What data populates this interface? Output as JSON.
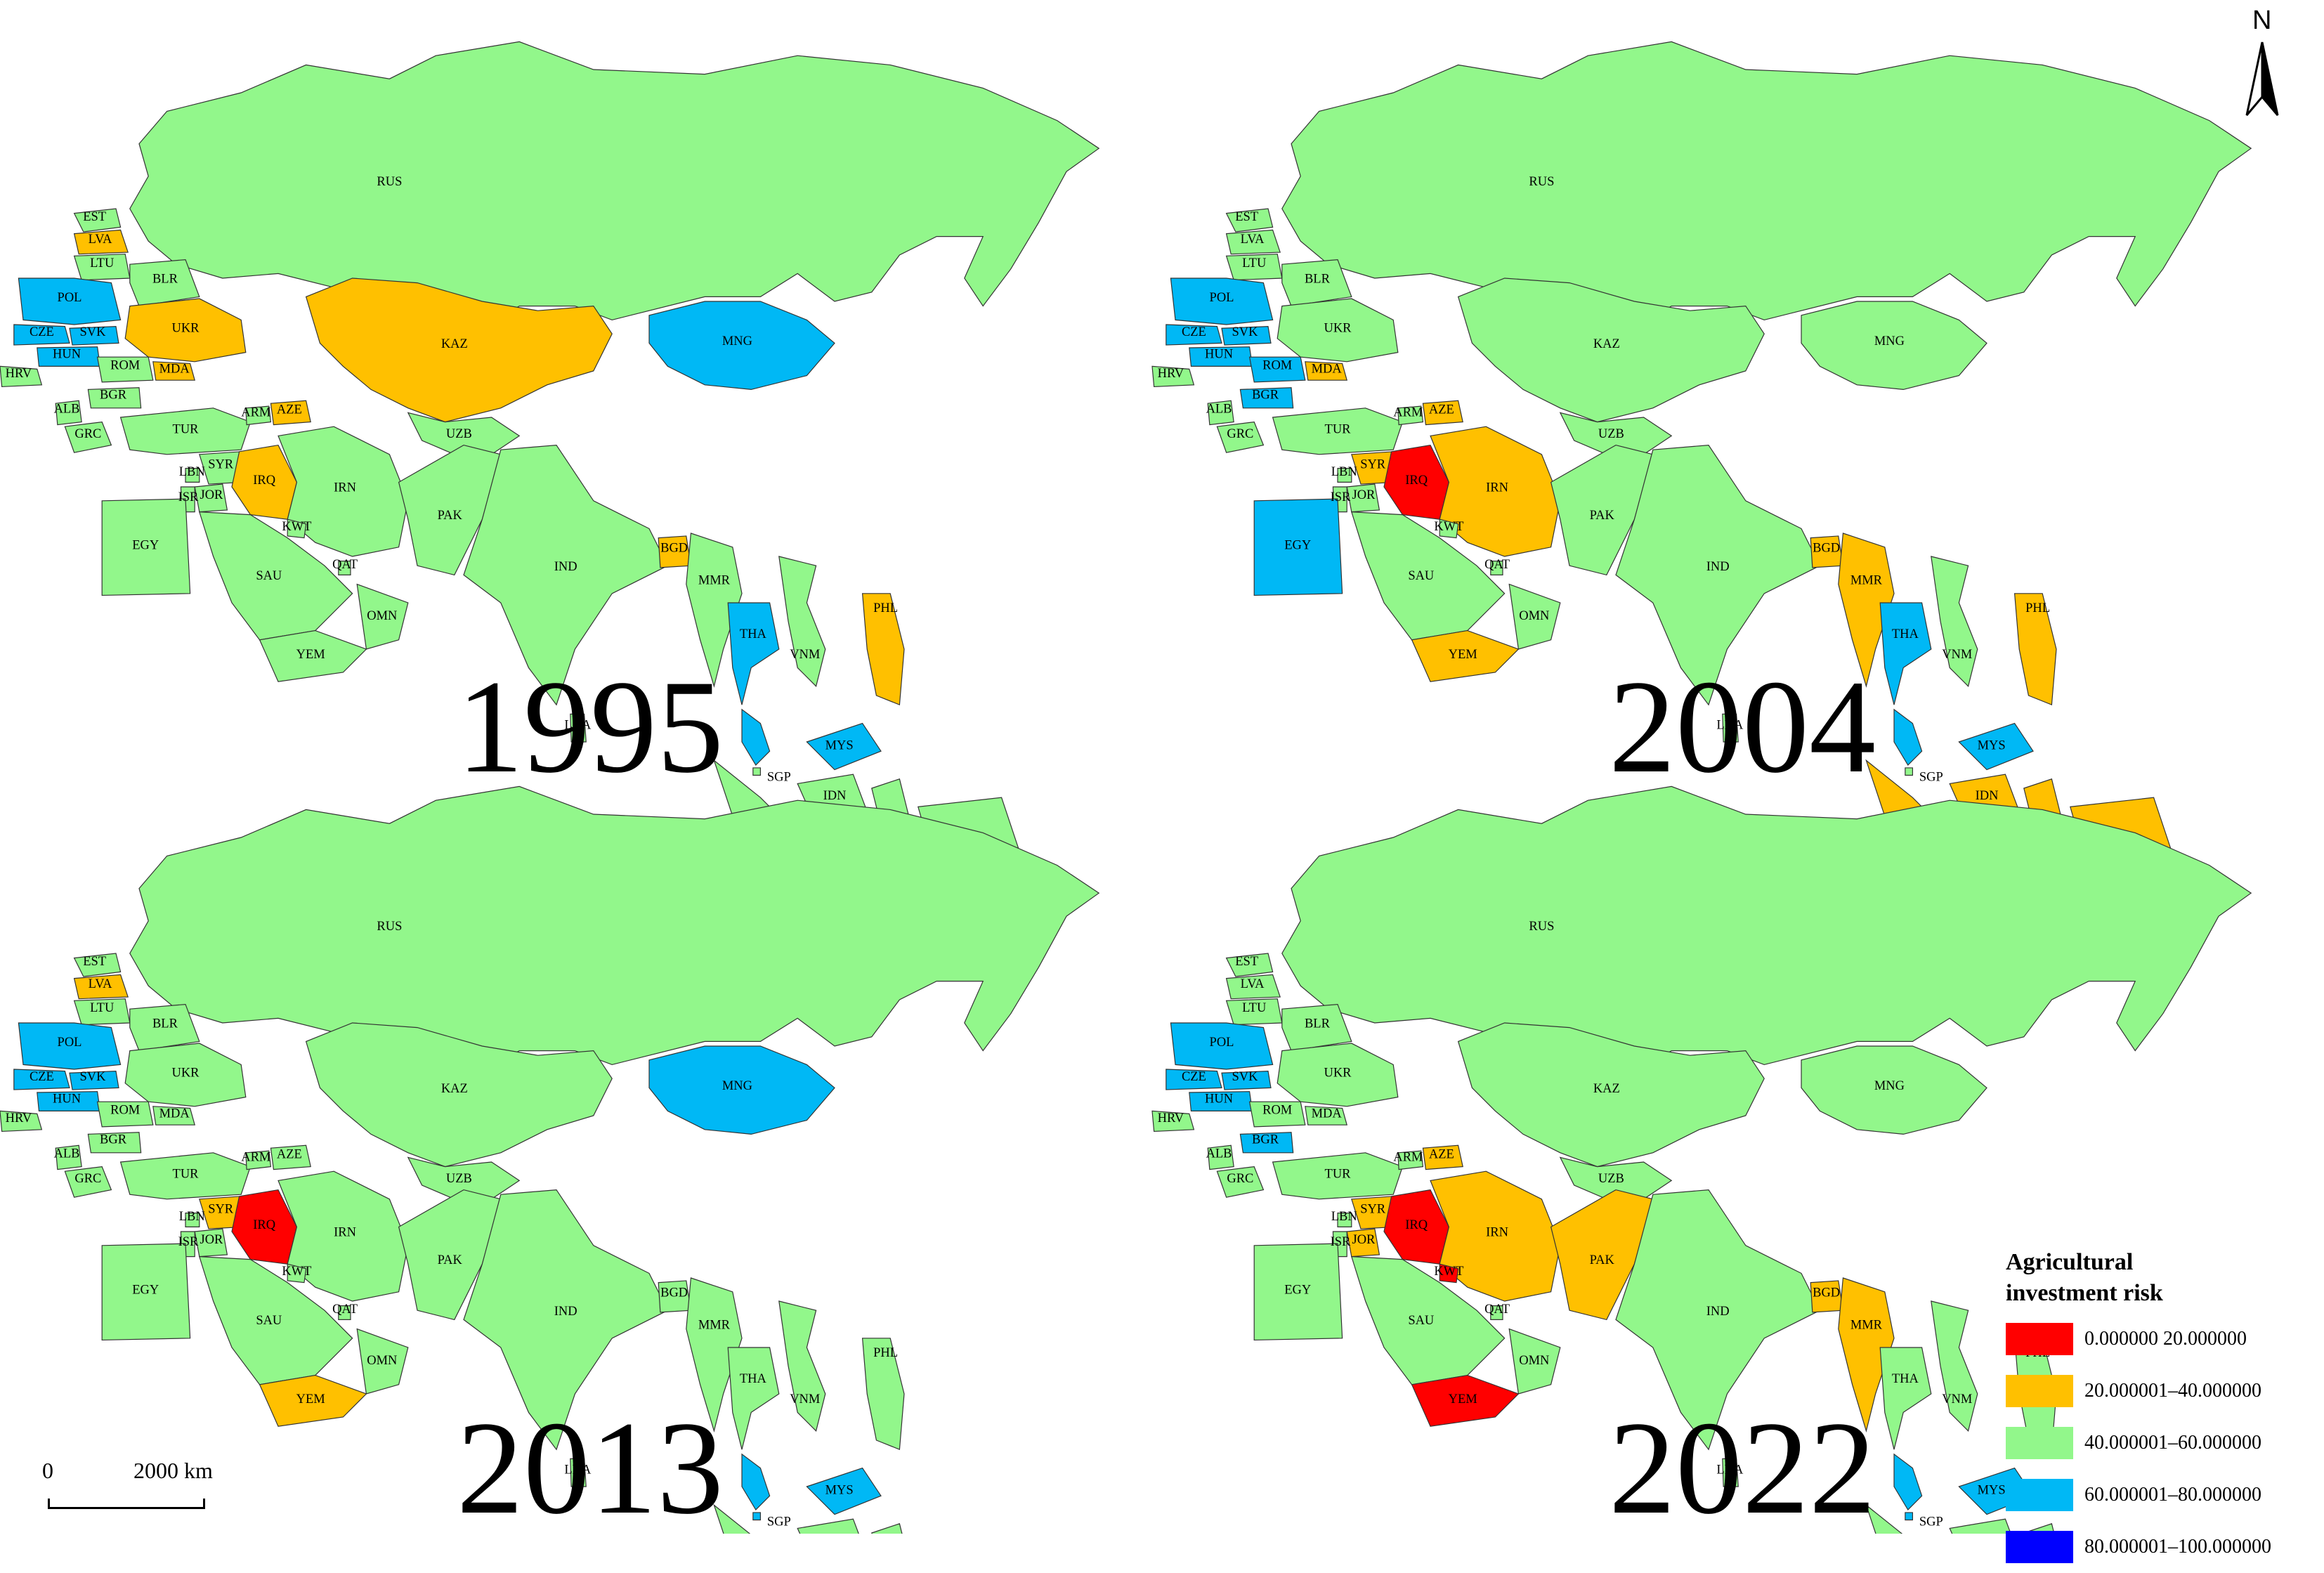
{
  "north_arrow": {
    "letter": "N",
    "icon": "north-arrow-icon"
  },
  "scale_bar": {
    "zero": "0",
    "distance": "2000 km"
  },
  "legend": {
    "title_line1": "Agricultural",
    "title_line2": "investment risk",
    "classes": [
      {
        "label": "0.000000  20.000000",
        "color": "#ff0000"
      },
      {
        "label": "20.000001–40.000000",
        "color": "#ffc000"
      },
      {
        "label": "40.000001–60.000000",
        "color": "#92f78b"
      },
      {
        "label": "60.000001–80.000000",
        "color": "#00b8f5"
      },
      {
        "label": "80.000001–100.000000",
        "color": "#0000ff"
      }
    ]
  },
  "panels": [
    {
      "year": "1995",
      "risk_class": {
        "POL": "blue",
        "CZE": "blue",
        "SVK": "blue",
        "HUN": "blue",
        "EST": "green",
        "LVA": "yellow",
        "LTU": "green",
        "BLR": "green",
        "UKR": "yellow",
        "MDA": "yellow",
        "ROM": "green",
        "HRV": "green",
        "ALB": "green",
        "BGR": "green",
        "GRC": "green",
        "TUR": "green",
        "ARM": "green",
        "AZE": "yellow",
        "SYR": "green",
        "LBN": "green",
        "JOR": "green",
        "ISR": "green",
        "IRQ": "yellow",
        "IRN": "green",
        "KWT": "green",
        "SAU": "green",
        "QAT": "green",
        "OMN": "green",
        "YEM": "green",
        "EGY": "green",
        "KAZ": "yellow",
        "UZB": "green",
        "MNG": "blue",
        "RUS": "green",
        "PAK": "green",
        "IND": "green",
        "BGD": "yellow",
        "LKA": "green",
        "MMR": "green",
        "THA": "blue",
        "VNM": "green",
        "PHL": "yellow",
        "MYS": "blue",
        "SGP": "green",
        "IDN": "green"
      }
    },
    {
      "year": "2004",
      "risk_class": {
        "POL": "blue",
        "CZE": "blue",
        "SVK": "blue",
        "HUN": "blue",
        "EST": "green",
        "LVA": "green",
        "LTU": "green",
        "BLR": "green",
        "UKR": "green",
        "MDA": "yellow",
        "ROM": "blue",
        "HRV": "green",
        "ALB": "green",
        "BGR": "blue",
        "GRC": "green",
        "TUR": "green",
        "ARM": "green",
        "AZE": "yellow",
        "SYR": "yellow",
        "LBN": "green",
        "JOR": "green",
        "ISR": "green",
        "IRQ": "red",
        "IRN": "yellow",
        "KWT": "green",
        "SAU": "green",
        "QAT": "green",
        "OMN": "green",
        "YEM": "yellow",
        "EGY": "blue",
        "KAZ": "green",
        "UZB": "green",
        "MNG": "green",
        "RUS": "green",
        "PAK": "green",
        "IND": "green",
        "BGD": "yellow",
        "LKA": "green",
        "MMR": "yellow",
        "THA": "blue",
        "VNM": "green",
        "PHL": "yellow",
        "MYS": "blue",
        "SGP": "green",
        "IDN": "yellow"
      }
    },
    {
      "year": "2013",
      "risk_class": {
        "POL": "blue",
        "CZE": "blue",
        "SVK": "blue",
        "HUN": "blue",
        "EST": "green",
        "LVA": "yellow",
        "LTU": "green",
        "BLR": "green",
        "UKR": "green",
        "MDA": "green",
        "ROM": "green",
        "HRV": "green",
        "ALB": "green",
        "BGR": "green",
        "GRC": "green",
        "TUR": "green",
        "ARM": "green",
        "AZE": "green",
        "SYR": "yellow",
        "LBN": "green",
        "JOR": "green",
        "ISR": "green",
        "IRQ": "red",
        "IRN": "green",
        "KWT": "green",
        "SAU": "green",
        "QAT": "green",
        "OMN": "green",
        "YEM": "yellow",
        "EGY": "green",
        "KAZ": "green",
        "UZB": "green",
        "MNG": "blue",
        "RUS": "green",
        "PAK": "green",
        "IND": "green",
        "BGD": "green",
        "LKA": "green",
        "MMR": "green",
        "THA": "green",
        "VNM": "green",
        "PHL": "green",
        "MYS": "blue",
        "SGP": "blue",
        "IDN": "green"
      }
    },
    {
      "year": "2022",
      "risk_class": {
        "POL": "blue",
        "CZE": "blue",
        "SVK": "blue",
        "HUN": "blue",
        "EST": "green",
        "LVA": "green",
        "LTU": "green",
        "BLR": "green",
        "UKR": "green",
        "MDA": "green",
        "ROM": "green",
        "HRV": "green",
        "ALB": "green",
        "BGR": "blue",
        "GRC": "green",
        "TUR": "green",
        "ARM": "green",
        "AZE": "yellow",
        "SYR": "yellow",
        "LBN": "green",
        "JOR": "yellow",
        "ISR": "green",
        "IRQ": "red",
        "IRN": "yellow",
        "KWT": "red",
        "SAU": "green",
        "QAT": "green",
        "OMN": "green",
        "YEM": "red",
        "EGY": "green",
        "KAZ": "green",
        "UZB": "green",
        "MNG": "green",
        "RUS": "green",
        "PAK": "yellow",
        "IND": "green",
        "BGD": "yellow",
        "LKA": "green",
        "MMR": "yellow",
        "THA": "green",
        "VNM": "green",
        "PHL": "green",
        "MYS": "blue",
        "SGP": "blue",
        "IDN": "green"
      }
    }
  ],
  "country_labels": {
    "RUS": "RUS",
    "KAZ": "KAZ",
    "MNG": "MNG",
    "UZB": "UZB",
    "EST": "EST",
    "LVA": "LVA",
    "LTU": "LTU",
    "BLR": "BLR",
    "POL": "POL",
    "CZE": "CZE",
    "SVK": "SVK",
    "HUN": "HUN",
    "UKR": "UKR",
    "MDA": "MDA",
    "ROM": "ROM",
    "HRV": "HRV",
    "ALB": "ALB",
    "BGR": "BGR",
    "GRC": "GRC",
    "TUR": "TUR",
    "ARM": "ARM",
    "AZE": "AZE",
    "SYR": "SYR",
    "LBN": "LBN",
    "JOR": "JOR",
    "ISR": "ISR",
    "IRQ": "IRQ",
    "IRN": "IRN",
    "KWT": "KWT",
    "SAU": "SAU",
    "QAT": "QAT",
    "OMN": "OMN",
    "YEM": "YEM",
    "EGY": "EGY",
    "PAK": "PAK",
    "IND": "IND",
    "BGD": "BGD",
    "LKA": "LKA",
    "MMR": "MMR",
    "THA": "THA",
    "VNM": "VNM",
    "PHL": "PHL",
    "MYS": "MYS",
    "SGP": "SGP",
    "IDN": "IDN"
  }
}
